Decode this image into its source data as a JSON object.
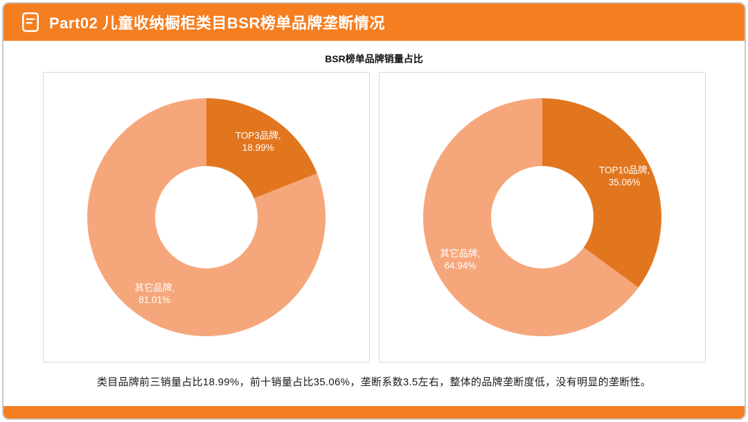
{
  "header": {
    "title": "Part02 儿童收纳橱柜类目BSR榜单品牌垄断情况",
    "icon": "document-icon"
  },
  "chart_title": "BSR榜单品牌销量占比",
  "summary": "类目品牌前三销量占比18.99%，前十销量占比35.06%，垄断系数3.5左右，整体的品牌垄断度低，没有明显的垄断性。",
  "colors": {
    "accent": "#F57E20",
    "dark_slice": "#E2761E",
    "light_slice": "#F5A77B",
    "panel_border": "#D9D9D9",
    "frame_border": "#C9C9C9",
    "label_text": "#FFFFFF"
  },
  "chart_data": [
    {
      "type": "pie",
      "subtype": "donut",
      "title": "BSR榜单品牌销量占比",
      "hole_ratio": 0.43,
      "start_angle": 0,
      "direction": "clockwise",
      "legend": "none",
      "slices": [
        {
          "label": "TOP3品牌",
          "value": 18.99,
          "color": "#E2761E",
          "display_lines": [
            "TOP3品牌,",
            "18.99%"
          ]
        },
        {
          "label": "其它品牌",
          "value": 81.01,
          "color": "#F5A77B",
          "display_lines": [
            "其它品牌,",
            "81.01%"
          ]
        }
      ]
    },
    {
      "type": "pie",
      "subtype": "donut",
      "title": "BSR榜单品牌销量占比",
      "hole_ratio": 0.43,
      "start_angle": 0,
      "direction": "clockwise",
      "legend": "none",
      "slices": [
        {
          "label": "TOP10品牌",
          "value": 35.06,
          "color": "#E2761E",
          "display_lines": [
            "TOP10品牌,",
            "35.06%"
          ]
        },
        {
          "label": "其它品牌",
          "value": 64.94,
          "color": "#F5A77B",
          "display_lines": [
            "其它品牌,",
            "64.94%"
          ]
        }
      ]
    }
  ]
}
